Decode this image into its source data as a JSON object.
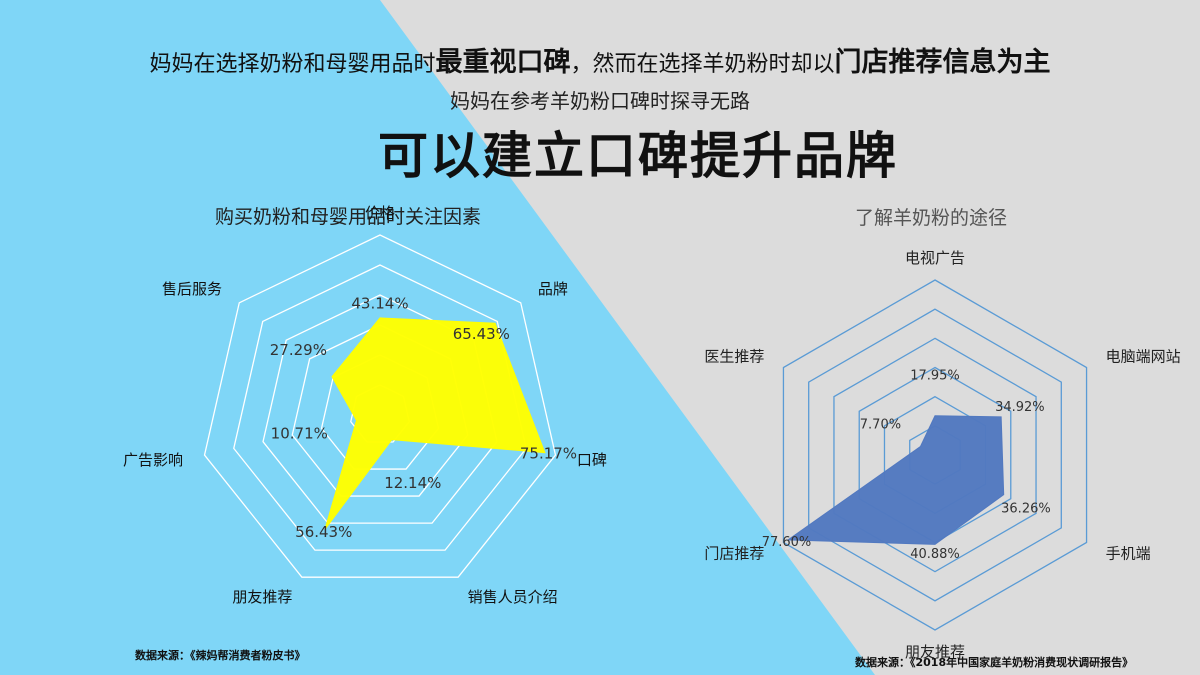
{
  "slide": {
    "headline_part1": "妈妈在选择奶粉和母婴用品时",
    "headline_bold1": "最重视口碑",
    "headline_part2": "，然而在选择羊奶粉时却以",
    "headline_bold2": "门店推荐信息为主",
    "subheadline": "妈妈在参考羊奶粉口碑时探寻无路",
    "main_title": "可以建立口碑提升品牌",
    "source_left": "数据来源：《辣妈帮消费者粉皮书》",
    "source_right": "数据来源：《2018年中国家庭羊奶粉消费现状调研报告》"
  },
  "colors": {
    "left_background": "#7fd6f7",
    "right_background": "#dcdcdc",
    "left_fill": "#ffff00",
    "right_fill": "#5279c0",
    "right_grid": "#5a9bd5",
    "left_grid": "#ffffff"
  },
  "chart_data": [
    {
      "type": "radar",
      "title": "购买奶粉和母婴用品时关注因素",
      "categories": [
        "价格",
        "品牌",
        "口碑",
        "销售人员介绍",
        "朋友推荐",
        "广告影响",
        "售后服务"
      ],
      "values": [
        43.14,
        65.43,
        75.17,
        12.14,
        56.43,
        10.71,
        27.29
      ],
      "value_labels": [
        "43.14%",
        "65.43%",
        "75.17%",
        "12.14%",
        "56.43%",
        "10.71%",
        "27.29%"
      ],
      "rmax": 80,
      "grid_levels": 6
    },
    {
      "type": "radar",
      "title": "了解羊奶粉的途径",
      "categories": [
        "电视广告",
        "电脑端网站",
        "手机端",
        "朋友推荐",
        "门店推荐",
        "医生推荐"
      ],
      "values": [
        17.95,
        34.92,
        36.26,
        40.88,
        77.6,
        7.7
      ],
      "value_labels": [
        "17.95%",
        "34.92%",
        "36.26%",
        "40.88%",
        "77.60%",
        "7.70%"
      ],
      "rmax": 80,
      "grid_levels": 6
    }
  ]
}
